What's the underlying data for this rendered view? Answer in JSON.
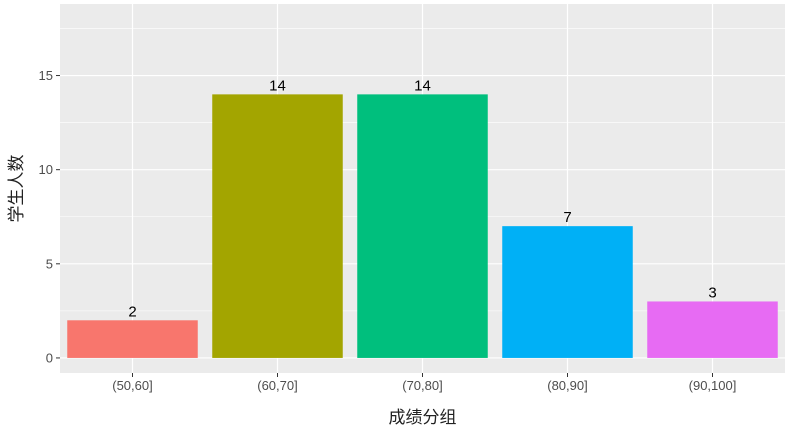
{
  "chart_data": {
    "type": "bar",
    "categories": [
      "(50,60]",
      "(60,70]",
      "(70,80]",
      "(80,90]",
      "(90,100]"
    ],
    "values": [
      2,
      14,
      14,
      7,
      3
    ],
    "data_labels": [
      "2",
      "14",
      "14",
      "7",
      "3"
    ],
    "colors": [
      "#F8766D",
      "#A3A500",
      "#00BF7D",
      "#00B0F6",
      "#E76BF3"
    ],
    "title": "",
    "xlabel": "成绩分组",
    "ylabel": "学生人数",
    "ylim": [
      -0.8,
      18.8
    ],
    "yticks": [
      0,
      5,
      10,
      15
    ],
    "ytick_labels": [
      "0",
      "5",
      "10",
      "15"
    ],
    "grid": true,
    "legend": "none",
    "panel_background": "#EBEBEB",
    "grid_color": "#FFFFFF"
  }
}
